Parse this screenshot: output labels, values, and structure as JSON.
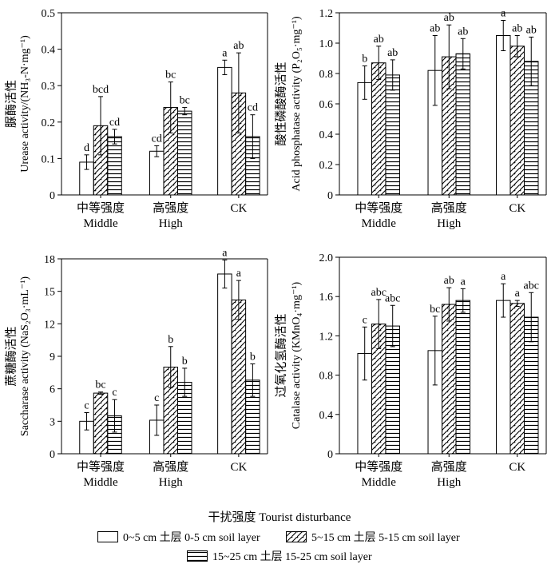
{
  "x_axis_title": "干扰强度 Tourist disturbance",
  "legend": [
    {
      "label": "0~5 cm 土层  0-5 cm soil layer",
      "pattern": "none"
    },
    {
      "label": "5~15 cm 土层  5-15 cm soil layer",
      "pattern": "diag"
    },
    {
      "label": "15~25 cm 土层  15-25 cm soil layer",
      "pattern": "horiz"
    }
  ],
  "chart_data": [
    {
      "type": "bar",
      "categories": [
        {
          "cn": "中等强度",
          "en": "Middle"
        },
        {
          "cn": "高强度",
          "en": "High"
        },
        {
          "cn": "",
          "en": "CK"
        }
      ],
      "ylabel_cn": "脲酶活性",
      "ylabel_en": "Urease activity/(NH₃-N·mg⁻¹)",
      "ylim": [
        0,
        0.5
      ],
      "yticks": [
        0,
        0.1,
        0.2,
        0.3,
        0.4,
        0.5
      ],
      "ytick_labels": [
        "0",
        "0.1",
        "0.2",
        "0.3",
        "0.4",
        "0.5"
      ],
      "series": [
        {
          "name": "0-5 cm soil layer",
          "values": [
            0.09,
            0.12,
            0.35
          ],
          "errors": [
            0.02,
            0.015,
            0.02
          ],
          "letters": [
            "d",
            "cd",
            "a"
          ]
        },
        {
          "name": "5-15 cm soil layer",
          "values": [
            0.19,
            0.24,
            0.28
          ],
          "errors": [
            0.08,
            0.07,
            0.11
          ],
          "letters": [
            "bcd",
            "bc",
            "ab"
          ]
        },
        {
          "name": "15-25 cm soil layer",
          "values": [
            0.16,
            0.23,
            0.16
          ],
          "errors": [
            0.02,
            0.01,
            0.06
          ],
          "letters": [
            "cd",
            "bc",
            "cd"
          ]
        }
      ]
    },
    {
      "type": "bar",
      "categories": [
        {
          "cn": "中等强度",
          "en": "Middle"
        },
        {
          "cn": "高强度",
          "en": "High"
        },
        {
          "cn": "",
          "en": "CK"
        }
      ],
      "ylabel_cn": "酸性磷酸酶活性",
      "ylabel_en": "Acid phosphatase activity (P₂O₅·mg⁻¹)",
      "ylim": [
        0,
        1.2
      ],
      "yticks": [
        0,
        0.2,
        0.4,
        0.6,
        0.8,
        1.0,
        1.2
      ],
      "ytick_labels": [
        "0",
        "0.2",
        "0.4",
        "0.6",
        "0.8",
        "1.0",
        "1.2"
      ],
      "series": [
        {
          "name": "0-5 cm soil layer",
          "values": [
            0.74,
            0.82,
            1.05
          ],
          "errors": [
            0.11,
            0.23,
            0.1
          ],
          "letters": [
            "b",
            "ab",
            "a"
          ]
        },
        {
          "name": "5-15 cm soil layer",
          "values": [
            0.87,
            0.91,
            0.98
          ],
          "errors": [
            0.11,
            0.21,
            0.07
          ],
          "letters": [
            "ab",
            "ab",
            "ab"
          ]
        },
        {
          "name": "15-25 cm soil layer",
          "values": [
            0.79,
            0.93,
            0.88
          ],
          "errors": [
            0.1,
            0.1,
            0.16
          ],
          "letters": [
            "ab",
            "ab",
            "ab"
          ]
        }
      ]
    },
    {
      "type": "bar",
      "categories": [
        {
          "cn": "中等强度",
          "en": "Middle"
        },
        {
          "cn": "高强度",
          "en": "High"
        },
        {
          "cn": "",
          "en": "CK"
        }
      ],
      "ylabel_cn": "蔗糖酶活性",
      "ylabel_en": "Saccharase activity (NaS₂O₃·mL⁻¹)",
      "ylim": [
        0,
        18
      ],
      "yticks": [
        0,
        3,
        6,
        9,
        12,
        15,
        18
      ],
      "ytick_labels": [
        "0",
        "3",
        "6",
        "9",
        "12",
        "15",
        "18"
      ],
      "series": [
        {
          "name": "0-5 cm soil layer",
          "values": [
            3.0,
            3.1,
            16.6
          ],
          "errors": [
            0.8,
            1.4,
            1.3
          ],
          "letters": [
            "c",
            "c",
            "a"
          ]
        },
        {
          "name": "5-15 cm soil layer",
          "values": [
            5.6,
            8.0,
            14.2
          ],
          "errors": [
            0.1,
            1.9,
            1.8
          ],
          "letters": [
            "bc",
            "b",
            "a"
          ]
        },
        {
          "name": "15-25 cm soil layer",
          "values": [
            3.5,
            6.6,
            6.8
          ],
          "errors": [
            1.5,
            1.3,
            1.5
          ],
          "letters": [
            "c",
            "b",
            "b"
          ]
        }
      ]
    },
    {
      "type": "bar",
      "categories": [
        {
          "cn": "中等强度",
          "en": "Middle"
        },
        {
          "cn": "高强度",
          "en": "High"
        },
        {
          "cn": "",
          "en": "CK"
        }
      ],
      "ylabel_cn": "过氧化氢酶活性",
      "ylabel_en": "Catalase activity (KMnO₄·mg⁻¹)",
      "ylim": [
        0,
        2.0
      ],
      "yticks": [
        0,
        0.4,
        0.8,
        1.2,
        1.6,
        2.0
      ],
      "ytick_labels": [
        "0",
        "0.4",
        "0.8",
        "1.2",
        "1.6",
        "2.0"
      ],
      "series": [
        {
          "name": "0-5 cm soil layer",
          "values": [
            1.02,
            1.05,
            1.56
          ],
          "errors": [
            0.27,
            0.35,
            0.17
          ],
          "letters": [
            "c",
            "bc",
            "a"
          ]
        },
        {
          "name": "5-15 cm soil layer",
          "values": [
            1.32,
            1.52,
            1.53
          ],
          "errors": [
            0.25,
            0.17,
            0.03
          ],
          "letters": [
            "abc",
            "ab",
            "a"
          ]
        },
        {
          "name": "15-25 cm soil layer",
          "values": [
            1.3,
            1.56,
            1.39
          ],
          "errors": [
            0.21,
            0.12,
            0.25
          ],
          "letters": [
            "abc",
            "a",
            "abc"
          ]
        }
      ]
    }
  ]
}
